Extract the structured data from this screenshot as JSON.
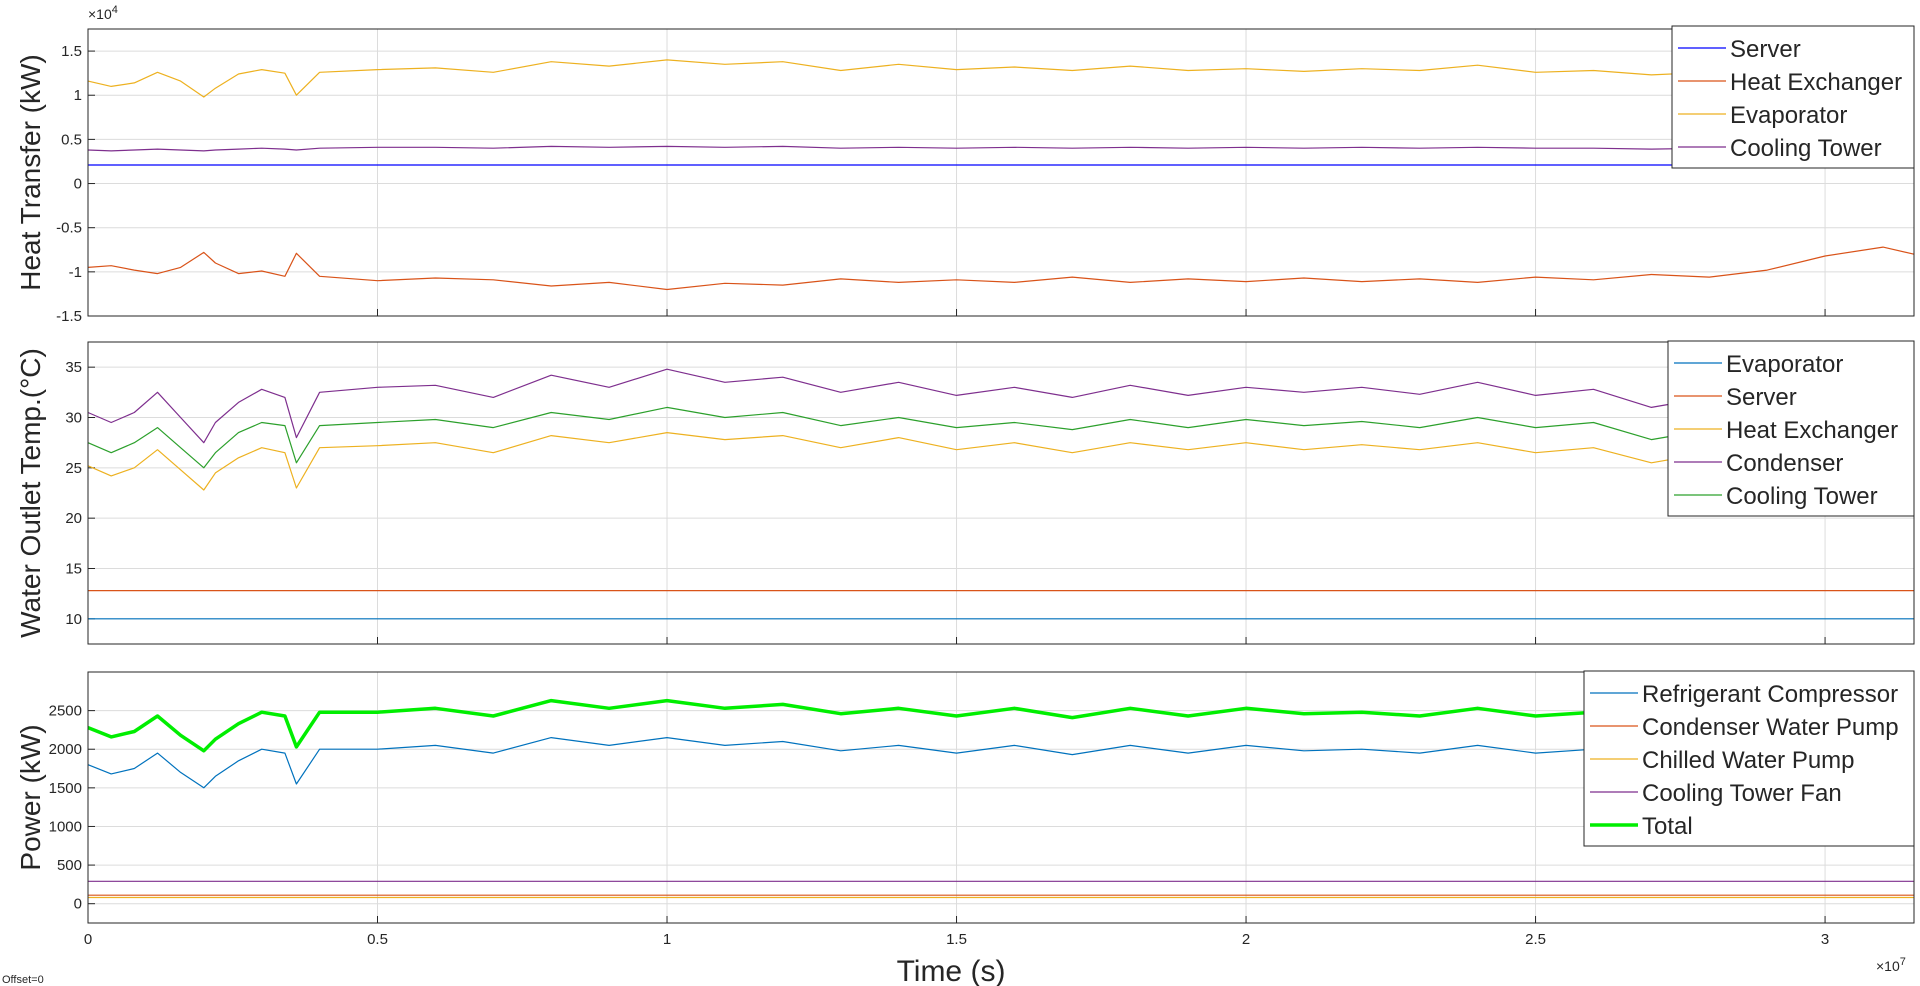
{
  "offset_label": "Offset=0",
  "chart_data": [
    {
      "type": "line",
      "ylabel": "Heat Transfer (kW)",
      "xlabel": "",
      "y_exponent": "×10",
      "y_exponent_power": "4",
      "xlim": [
        0,
        31536000
      ],
      "ylim": [
        -15000,
        17500
      ],
      "yticks": [
        -15000,
        -10000,
        -5000,
        0,
        5000,
        10000,
        15000
      ],
      "ytick_labels": [
        "-1.5",
        "-1",
        "-0.5",
        "0",
        "0.5",
        "1",
        "1.5"
      ],
      "xtick_labels": [],
      "grid": true,
      "legend_position": "top-right",
      "x": [
        0,
        400000,
        800000,
        1200000,
        1600000,
        2000000,
        2200000,
        2600000,
        3000000,
        3400000,
        3600000,
        4000000,
        5000000,
        6000000,
        7000000,
        8000000,
        9000000,
        10000000,
        11000000,
        12000000,
        13000000,
        14000000,
        15000000,
        16000000,
        17000000,
        18000000,
        19000000,
        20000000,
        21000000,
        22000000,
        23000000,
        24000000,
        25000000,
        26000000,
        27000000,
        28000000,
        29000000,
        30000000,
        31000000,
        31536000
      ],
      "series": [
        {
          "name": "Server",
          "color": "#0000ff",
          "width": 1.2,
          "values": [
            2100,
            2100,
            2100,
            2100,
            2100,
            2100,
            2100,
            2100,
            2100,
            2100,
            2100,
            2100,
            2100,
            2100,
            2100,
            2100,
            2100,
            2100,
            2100,
            2100,
            2100,
            2100,
            2100,
            2100,
            2100,
            2100,
            2100,
            2100,
            2100,
            2100,
            2100,
            2100,
            2100,
            2100,
            2100,
            2100,
            2100,
            2100,
            2100,
            2100
          ]
        },
        {
          "name": "Heat Exchanger",
          "color": "#d95319",
          "width": 1.2,
          "values": [
            -9500,
            -9300,
            -9800,
            -10200,
            -9500,
            -7800,
            -9000,
            -10200,
            -9900,
            -10500,
            -7900,
            -10500,
            -11000,
            -10700,
            -10900,
            -11600,
            -11200,
            -12000,
            -11300,
            -11500,
            -10800,
            -11200,
            -10900,
            -11200,
            -10600,
            -11200,
            -10800,
            -11100,
            -10700,
            -11100,
            -10800,
            -11200,
            -10600,
            -10900,
            -10300,
            -10600,
            -9800,
            -8200,
            -7200,
            -8000
          ]
        },
        {
          "name": "Evaporator",
          "color": "#edb120",
          "width": 1.2,
          "values": [
            11600,
            11000,
            11400,
            12600,
            11600,
            9800,
            10800,
            12400,
            12900,
            12500,
            10000,
            12600,
            12900,
            13100,
            12600,
            13800,
            13300,
            14000,
            13500,
            13800,
            12800,
            13500,
            12900,
            13200,
            12800,
            13300,
            12800,
            13000,
            12700,
            13000,
            12800,
            13400,
            12600,
            12800,
            12300,
            12600,
            12500,
            12700,
            12300,
            12500
          ]
        },
        {
          "name": "Cooling Tower",
          "color": "#7e2f8e",
          "width": 1.2,
          "values": [
            3800,
            3700,
            3800,
            3900,
            3800,
            3700,
            3800,
            3900,
            4000,
            3900,
            3800,
            4000,
            4100,
            4100,
            4000,
            4200,
            4100,
            4200,
            4100,
            4200,
            4000,
            4100,
            4000,
            4100,
            4000,
            4100,
            4000,
            4100,
            4000,
            4100,
            4000,
            4100,
            4000,
            4000,
            3900,
            4000,
            4000,
            4000,
            3900,
            4000
          ]
        }
      ]
    },
    {
      "type": "line",
      "ylabel": "Water Outlet Temp.(°C)",
      "xlabel": "",
      "xlim": [
        0,
        31536000
      ],
      "ylim": [
        7.5,
        37.5
      ],
      "yticks": [
        10,
        15,
        20,
        25,
        30,
        35
      ],
      "ytick_labels": [
        "10",
        "15",
        "20",
        "25",
        "30",
        "35"
      ],
      "xtick_labels": [],
      "grid": true,
      "legend_position": "top-right",
      "x": [
        0,
        400000,
        800000,
        1200000,
        1600000,
        2000000,
        2200000,
        2600000,
        3000000,
        3400000,
        3600000,
        4000000,
        5000000,
        6000000,
        7000000,
        8000000,
        9000000,
        10000000,
        11000000,
        12000000,
        13000000,
        14000000,
        15000000,
        16000000,
        17000000,
        18000000,
        19000000,
        20000000,
        21000000,
        22000000,
        23000000,
        24000000,
        25000000,
        26000000,
        27000000,
        28000000,
        29000000,
        30000000,
        31000000,
        31536000
      ],
      "series": [
        {
          "name": "Evaporator",
          "color": "#0072bd",
          "width": 1.2,
          "values": [
            10,
            10,
            10,
            10,
            10,
            10,
            10,
            10,
            10,
            10,
            10,
            10,
            10,
            10,
            10,
            10,
            10,
            10,
            10,
            10,
            10,
            10,
            10,
            10,
            10,
            10,
            10,
            10,
            10,
            10,
            10,
            10,
            10,
            10,
            10,
            10,
            10,
            10,
            10,
            10
          ]
        },
        {
          "name": "Server",
          "color": "#d95319",
          "width": 1.2,
          "values": [
            12.8,
            12.8,
            12.8,
            12.8,
            12.8,
            12.8,
            12.8,
            12.8,
            12.8,
            12.8,
            12.8,
            12.8,
            12.8,
            12.8,
            12.8,
            12.8,
            12.8,
            12.8,
            12.8,
            12.8,
            12.8,
            12.8,
            12.8,
            12.8,
            12.8,
            12.8,
            12.8,
            12.8,
            12.8,
            12.8,
            12.8,
            12.8,
            12.8,
            12.8,
            12.8,
            12.8,
            12.8,
            12.8,
            12.8,
            12.8
          ]
        },
        {
          "name": "Heat Exchanger",
          "color": "#edb120",
          "width": 1.2,
          "values": [
            25.2,
            24.2,
            25.0,
            26.8,
            24.8,
            22.8,
            24.5,
            26.0,
            27.0,
            26.5,
            23.0,
            27.0,
            27.2,
            27.5,
            26.5,
            28.2,
            27.5,
            28.5,
            27.8,
            28.2,
            27.0,
            28.0,
            26.8,
            27.5,
            26.5,
            27.5,
            26.8,
            27.5,
            26.8,
            27.3,
            26.8,
            27.5,
            26.5,
            27.0,
            25.5,
            26.5,
            26.0,
            26.2,
            25.8,
            26.0
          ]
        },
        {
          "name": "Condenser",
          "color": "#7e2f8e",
          "width": 1.2,
          "values": [
            30.5,
            29.5,
            30.5,
            32.5,
            30.0,
            27.5,
            29.5,
            31.5,
            32.8,
            32.0,
            28.0,
            32.5,
            33.0,
            33.2,
            32.0,
            34.2,
            33.0,
            34.8,
            33.5,
            34.0,
            32.5,
            33.5,
            32.2,
            33.0,
            32.0,
            33.2,
            32.2,
            33.0,
            32.5,
            33.0,
            32.3,
            33.5,
            32.2,
            32.8,
            31.0,
            32.0,
            31.8,
            32.0,
            31.5,
            31.8
          ]
        },
        {
          "name": "Cooling Tower",
          "color": "#2ca02c",
          "width": 1.2,
          "values": [
            27.5,
            26.5,
            27.5,
            29.0,
            27.0,
            25.0,
            26.5,
            28.5,
            29.5,
            29.2,
            25.5,
            29.2,
            29.5,
            29.8,
            29.0,
            30.5,
            29.8,
            31.0,
            30.0,
            30.5,
            29.2,
            30.0,
            29.0,
            29.5,
            28.8,
            29.8,
            29.0,
            29.8,
            29.2,
            29.6,
            29.0,
            30.0,
            29.0,
            29.5,
            27.8,
            28.8,
            28.6,
            28.8,
            28.3,
            28.6
          ]
        }
      ]
    },
    {
      "type": "line",
      "ylabel": "Power (kW)",
      "xlabel": "Time (s)",
      "x_exponent": "×10",
      "x_exponent_power": "7",
      "xlim": [
        0,
        31536000
      ],
      "ylim": [
        -250,
        3000
      ],
      "yticks": [
        0,
        500,
        1000,
        1500,
        2000,
        2500
      ],
      "ytick_labels": [
        "0",
        "500",
        "1000",
        "1500",
        "2000",
        "2500"
      ],
      "xticks": [
        0,
        5000000,
        10000000,
        15000000,
        20000000,
        25000000,
        30000000
      ],
      "xtick_labels": [
        "0",
        "0.5",
        "1",
        "1.5",
        "2",
        "2.5",
        "3"
      ],
      "grid": true,
      "legend_position": "top-right",
      "x": [
        0,
        400000,
        800000,
        1200000,
        1600000,
        2000000,
        2200000,
        2600000,
        3000000,
        3400000,
        3600000,
        4000000,
        5000000,
        6000000,
        7000000,
        8000000,
        9000000,
        10000000,
        11000000,
        12000000,
        13000000,
        14000000,
        15000000,
        16000000,
        17000000,
        18000000,
        19000000,
        20000000,
        21000000,
        22000000,
        23000000,
        24000000,
        25000000,
        26000000,
        27000000,
        28000000,
        29000000,
        30000000,
        31000000,
        31536000
      ],
      "series": [
        {
          "name": "Refrigerant Compressor",
          "color": "#0072bd",
          "width": 1.2,
          "values": [
            1800,
            1680,
            1750,
            1950,
            1700,
            1500,
            1650,
            1850,
            2000,
            1950,
            1550,
            2000,
            2000,
            2050,
            1950,
            2150,
            2050,
            2150,
            2050,
            2100,
            1980,
            2050,
            1950,
            2050,
            1930,
            2050,
            1950,
            2050,
            1980,
            2000,
            1950,
            2050,
            1950,
            2000,
            1950,
            2000,
            1950,
            2000,
            1950,
            1990
          ]
        },
        {
          "name": "Condenser Water Pump",
          "color": "#d95319",
          "width": 1.2,
          "values": [
            110,
            110,
            110,
            110,
            110,
            110,
            110,
            110,
            110,
            110,
            110,
            110,
            110,
            110,
            110,
            110,
            110,
            110,
            110,
            110,
            110,
            110,
            110,
            110,
            110,
            110,
            110,
            110,
            110,
            110,
            110,
            110,
            110,
            110,
            110,
            110,
            110,
            110,
            110,
            110
          ]
        },
        {
          "name": "Chilled Water Pump",
          "color": "#edb120",
          "width": 1.2,
          "values": [
            80,
            80,
            80,
            80,
            80,
            80,
            80,
            80,
            80,
            80,
            80,
            80,
            80,
            80,
            80,
            80,
            80,
            80,
            80,
            80,
            80,
            80,
            80,
            80,
            80,
            80,
            80,
            80,
            80,
            80,
            80,
            80,
            80,
            80,
            80,
            80,
            80,
            80,
            80,
            80
          ]
        },
        {
          "name": "Cooling Tower Fan",
          "color": "#7e2f8e",
          "width": 1.2,
          "values": [
            290,
            290,
            290,
            290,
            290,
            290,
            290,
            290,
            290,
            290,
            290,
            290,
            290,
            290,
            290,
            290,
            290,
            290,
            290,
            290,
            290,
            290,
            290,
            290,
            290,
            290,
            290,
            290,
            290,
            290,
            290,
            290,
            290,
            290,
            290,
            290,
            290,
            290,
            290,
            290
          ]
        },
        {
          "name": "Total",
          "color": "#00ee00",
          "width": 3.5,
          "values": [
            2280,
            2160,
            2230,
            2430,
            2180,
            1980,
            2130,
            2330,
            2480,
            2430,
            2030,
            2480,
            2480,
            2530,
            2430,
            2630,
            2530,
            2630,
            2530,
            2580,
            2460,
            2530,
            2430,
            2530,
            2410,
            2530,
            2430,
            2530,
            2460,
            2480,
            2430,
            2530,
            2430,
            2480,
            2430,
            2480,
            2430,
            2480,
            2430,
            2470
          ]
        }
      ]
    }
  ]
}
